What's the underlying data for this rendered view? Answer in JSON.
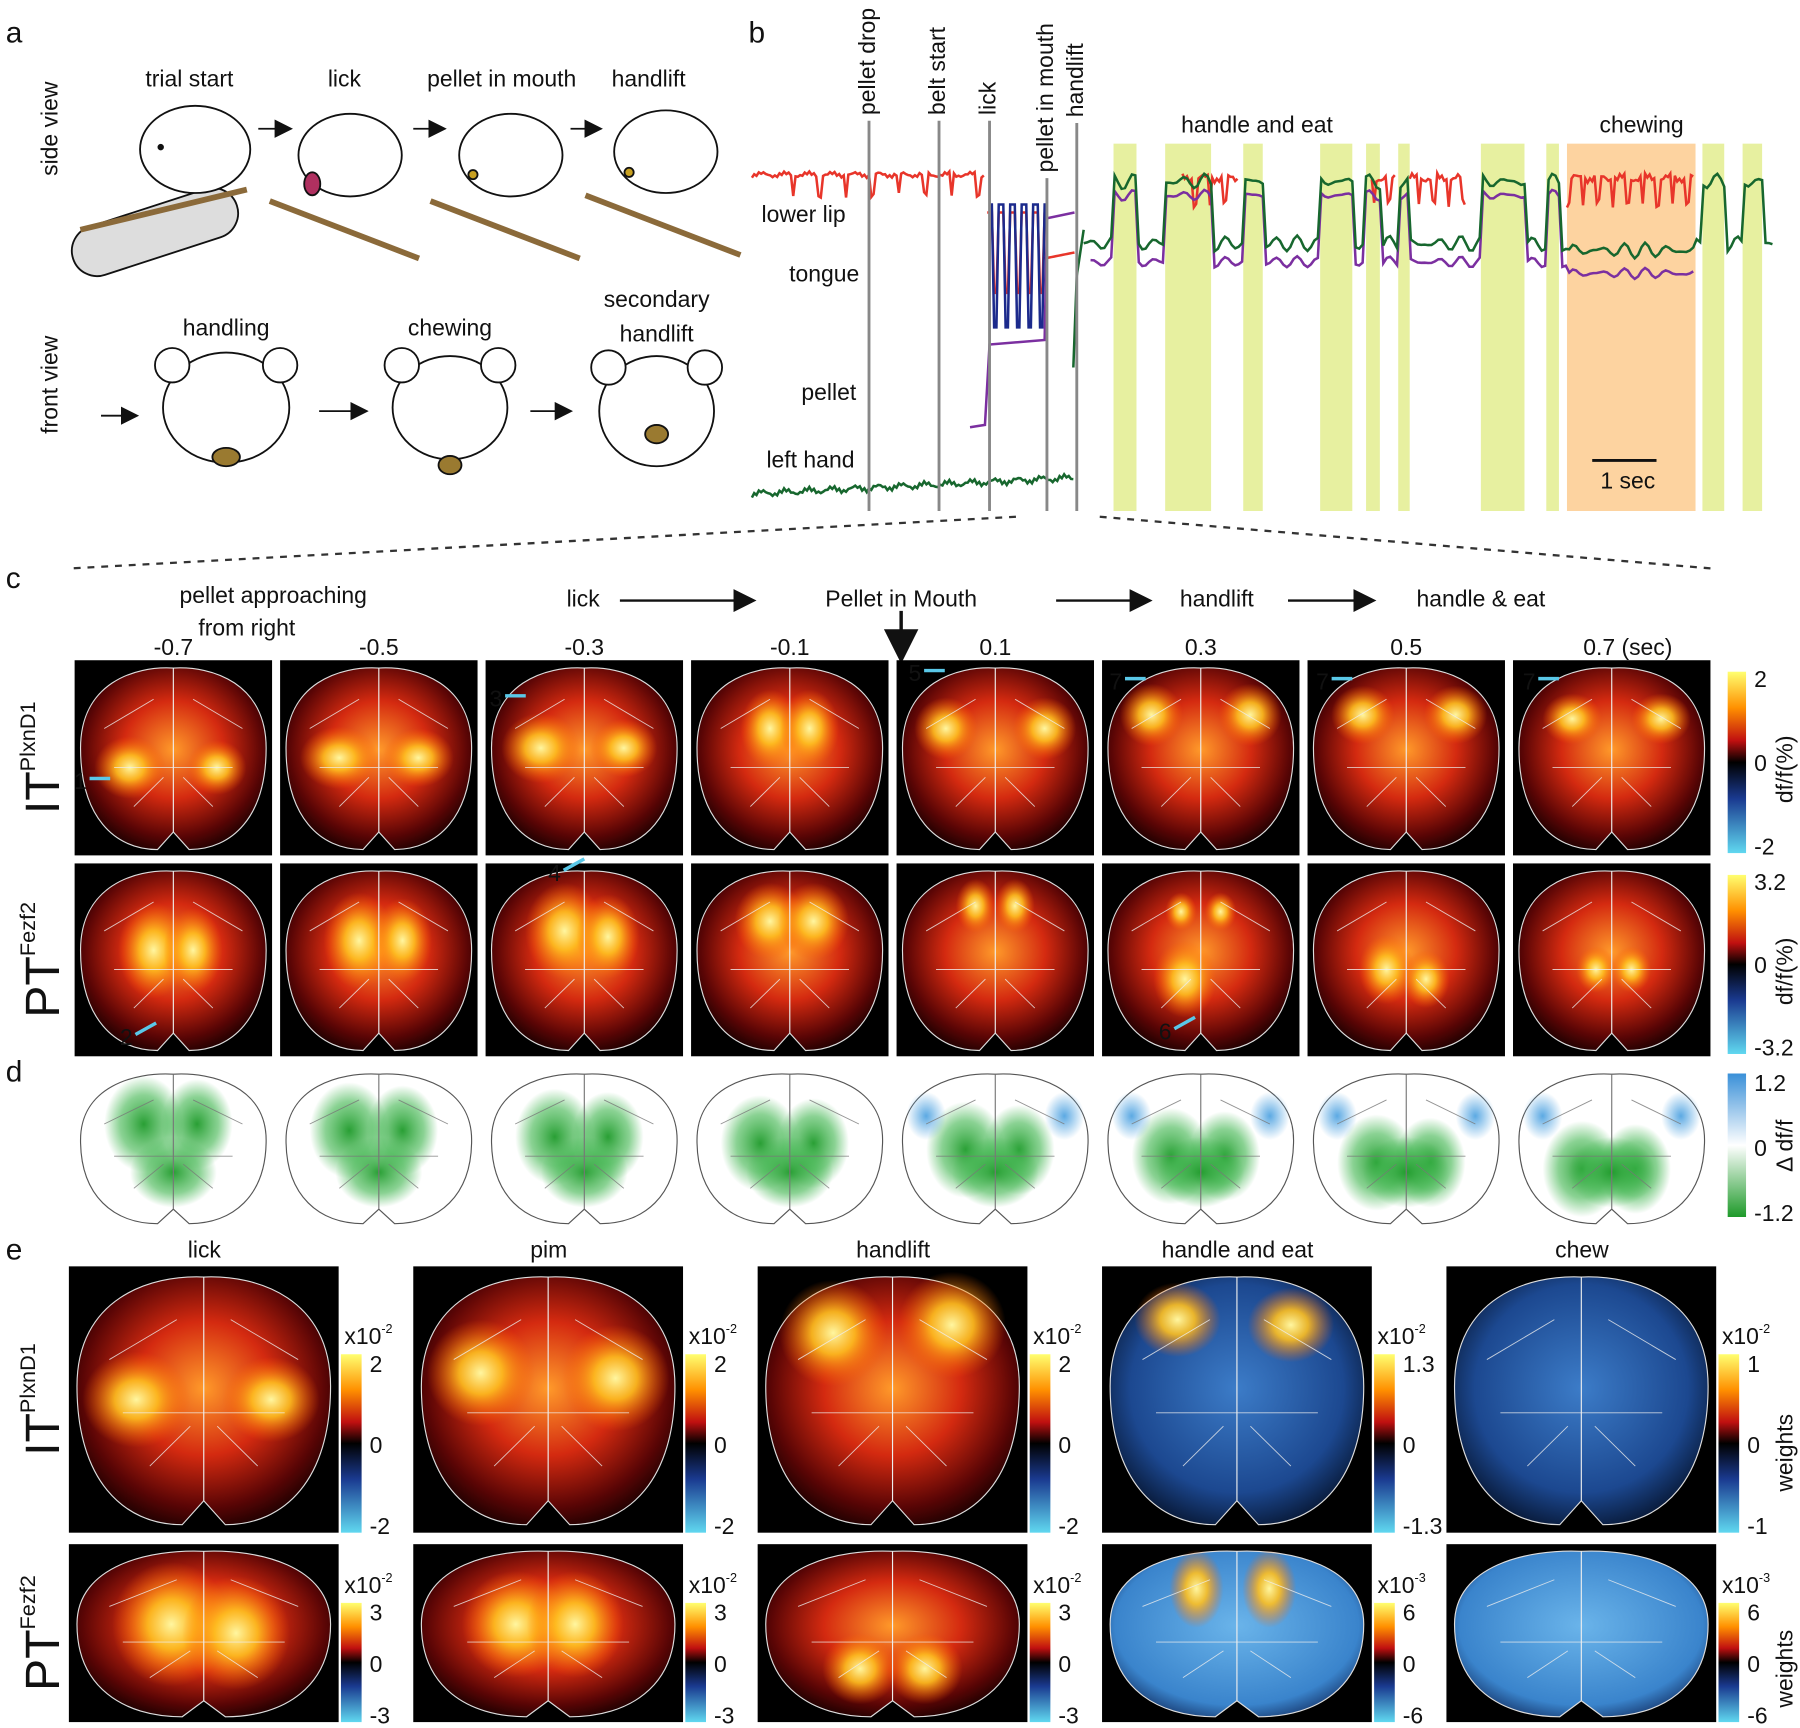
{
  "panel_a": {
    "label": "a",
    "side_view": "side view",
    "front_view": "front view",
    "side_steps": [
      "trial start",
      "lick",
      "pellet in mouth",
      "handlift"
    ],
    "front_steps": [
      "handling",
      "chewing"
    ],
    "secondary_handlift": [
      "secondary",
      "handlift"
    ]
  },
  "panel_b": {
    "label": "b",
    "events": [
      "pellet drop",
      "belt start",
      "lick",
      "pellet in mouth",
      "handlift"
    ],
    "traces": [
      {
        "name": "lower lip",
        "color": "#e8352a"
      },
      {
        "name": "tongue",
        "color": "#1c2a8c"
      },
      {
        "name": "pellet",
        "color": "#7b2fa0"
      },
      {
        "name": "left hand",
        "color": "#17672e"
      }
    ],
    "handle_and_eat": "handle and eat",
    "chewing": "chewing",
    "scale_bar": "1 sec"
  },
  "panel_c": {
    "label": "c",
    "first_phase": [
      "pellet approaching",
      "from right"
    ],
    "phases": [
      "lick",
      "Pellet in Mouth",
      "handlift",
      "handle & eat"
    ],
    "times": [
      "-0.7",
      "-0.5",
      "-0.3",
      "-0.1",
      "0.1",
      "0.3",
      "0.5",
      "0.7 (sec)"
    ],
    "rows": [
      {
        "name": "IT",
        "sup": "PlxnD1",
        "color": "#2b8fd0",
        "cbar": [
          "2",
          "0",
          "-2"
        ],
        "cbar_label": "df/f(%)",
        "markers": [
          "1",
          "3",
          "5",
          "7",
          "7",
          "7"
        ]
      },
      {
        "name": "PT",
        "sup": "Fezf2",
        "color": "#3cb44b",
        "cbar": [
          "3.2",
          "0",
          "-3.2"
        ],
        "cbar_label": "df/f(%)",
        "markers": [
          "2",
          "4",
          "6"
        ]
      }
    ]
  },
  "panel_d": {
    "label": "d",
    "cbar": [
      "1.2",
      "0",
      "-1.2"
    ],
    "cbar_label": "Δ df/f"
  },
  "panel_e": {
    "label": "e",
    "titles": [
      "lick",
      "pim",
      "handlift",
      "handle and eat",
      "chew"
    ],
    "rows": [
      {
        "name": "IT",
        "sup": "PlxnD1",
        "color": "#2b8fd0",
        "cbar_label": "weights",
        "scales": [
          {
            "exp": "x10",
            "pow": "-2",
            "ticks": [
              "2",
              "0",
              "-2"
            ]
          },
          {
            "exp": "x10",
            "pow": "-2",
            "ticks": [
              "2",
              "0",
              "-2"
            ]
          },
          {
            "exp": "x10",
            "pow": "-2",
            "ticks": [
              "2",
              "0",
              "-2"
            ]
          },
          {
            "exp": "x10",
            "pow": "-2",
            "ticks": [
              "1.3",
              "0",
              "-1.3"
            ]
          },
          {
            "exp": "x10",
            "pow": "-2",
            "ticks": [
              "1",
              "0",
              "-1"
            ]
          }
        ]
      },
      {
        "name": "PT",
        "sup": "Fezf2",
        "color": "#3cb44b",
        "cbar_label": "weights",
        "scales": [
          {
            "exp": "x10",
            "pow": "-2",
            "ticks": [
              "3",
              "0",
              "-3"
            ]
          },
          {
            "exp": "x10",
            "pow": "-2",
            "ticks": [
              "3",
              "0",
              "-3"
            ]
          },
          {
            "exp": "x10",
            "pow": "-2",
            "ticks": [
              "3",
              "0",
              "-3"
            ]
          },
          {
            "exp": "x10",
            "pow": "-3",
            "ticks": [
              "6",
              "0",
              "-6"
            ]
          },
          {
            "exp": "x10",
            "pow": "-3",
            "ticks": [
              "6",
              "0",
              "-6"
            ]
          }
        ]
      }
    ]
  }
}
